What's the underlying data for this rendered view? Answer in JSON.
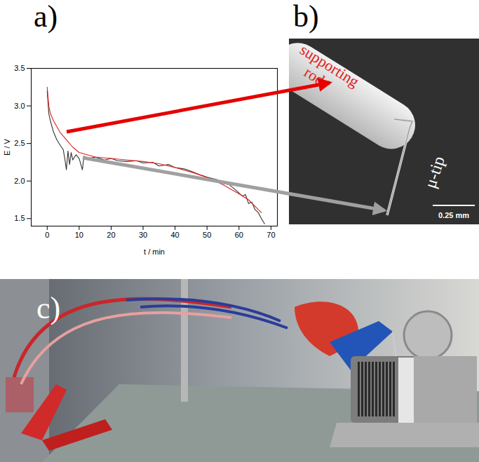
{
  "panel_labels": [
    "a)",
    "b)",
    "c)"
  ],
  "chart_data": {
    "type": "line",
    "x_label": "t / min",
    "y_label": "E / V",
    "xlim": [
      -5,
      72
    ],
    "xticks": [
      0,
      10,
      20,
      30,
      40,
      50,
      60,
      70
    ],
    "ylim": [
      1.4,
      3.5
    ],
    "yticks": [
      {
        "value": 1.5,
        "label": "1.5"
      },
      {
        "value": 2,
        "label": "2.0"
      },
      {
        "value": 2.5,
        "label": "2.5"
      },
      {
        "value": 3,
        "label": "3.0"
      },
      {
        "value": 3.5,
        "label": "3.5"
      }
    ],
    "grid": false,
    "series": [
      {
        "color": "#333333",
        "x": [
          0,
          0.5,
          1,
          2,
          3,
          4,
          5,
          5.5,
          6,
          6.5,
          7,
          7.5,
          8,
          9,
          10,
          11,
          11.5,
          13,
          15,
          18,
          20,
          22,
          25,
          28,
          30,
          33,
          35,
          38,
          40,
          43,
          45,
          48,
          50,
          53,
          55,
          57,
          59,
          61,
          62,
          63,
          64,
          65,
          66,
          67,
          68
        ],
        "values": [
          3.2,
          2.9,
          2.8,
          2.65,
          2.55,
          2.48,
          2.42,
          2.3,
          2.15,
          2.4,
          2.22,
          2.38,
          2.28,
          2.35,
          2.3,
          2.15,
          2.33,
          2.3,
          2.32,
          2.28,
          2.3,
          2.27,
          2.26,
          2.27,
          2.24,
          2.25,
          2.2,
          2.22,
          2.18,
          2.16,
          2.13,
          2.08,
          2.05,
          2.02,
          1.97,
          1.95,
          1.88,
          1.8,
          1.82,
          1.7,
          1.72,
          1.62,
          1.58,
          1.5,
          1.43
        ]
      },
      {
        "color": "#e02020",
        "x": [
          0,
          0.5,
          1,
          2,
          4,
          6,
          8,
          10,
          15,
          20,
          25,
          30,
          35,
          40,
          45,
          50,
          55,
          60,
          63,
          66,
          67
        ],
        "values": [
          3.25,
          3.0,
          2.9,
          2.8,
          2.65,
          2.55,
          2.45,
          2.38,
          2.32,
          2.3,
          2.28,
          2.26,
          2.23,
          2.18,
          2.12,
          2.05,
          1.95,
          1.83,
          1.75,
          1.62,
          1.58
        ]
      }
    ]
  },
  "image_annotations": {
    "rod_label": "supporting rod",
    "tip_label": "μ-tip",
    "scale_bar": "0.25 mm"
  }
}
